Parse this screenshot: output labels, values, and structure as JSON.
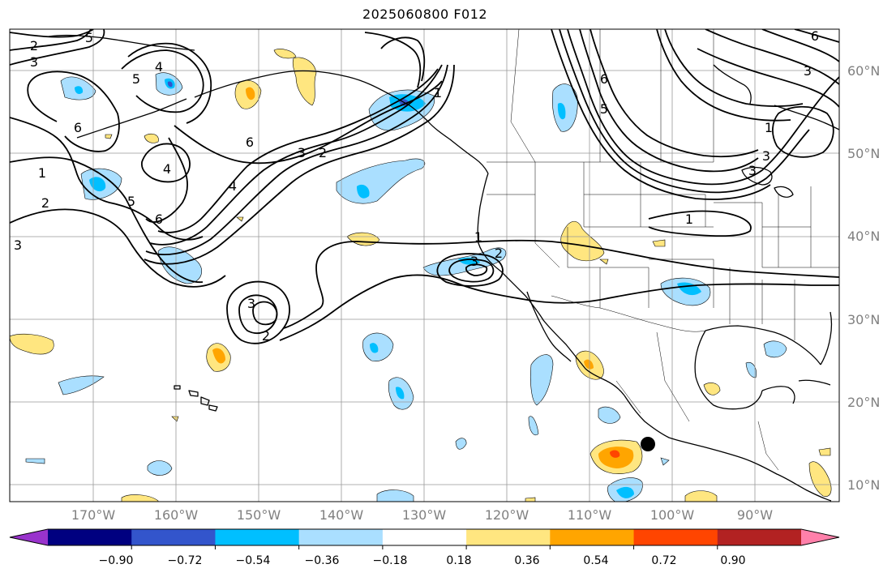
{
  "title": "2025060800 F012",
  "lat_labels": [
    "60°N",
    "50°N",
    "40°N",
    "30°N",
    "20°N",
    "10°N"
  ],
  "lon_labels": [
    "170°W",
    "160°W",
    "150°W",
    "140°W",
    "130°W",
    "120°W",
    "110°W",
    "100°W",
    "90°W"
  ],
  "contour_labels": [
    "2",
    "3",
    "5",
    "4",
    "1",
    "6",
    "6",
    "4",
    "5",
    "6",
    "1",
    "2",
    "3",
    "4",
    "3",
    "2",
    "6",
    "5",
    "3",
    "1",
    "3",
    "1",
    "3",
    "2",
    "3",
    "2",
    "1",
    "6",
    "5",
    "3"
  ],
  "colorbar": {
    "ticks": [
      "−0.90",
      "−0.72",
      "−0.54",
      "−0.36",
      "−0.18",
      "0.18",
      "0.36",
      "0.54",
      "0.72",
      "0.90"
    ],
    "colors": [
      "#9933cc",
      "#000080",
      "#3355cc",
      "#00bfff",
      "#aadfff",
      "#ffffff",
      "#ffe680",
      "#ffa500",
      "#ff4500",
      "#b22222",
      "#ff80aa"
    ]
  },
  "colors": {
    "contour": "#000000",
    "grid": "#999999",
    "coast": "#000000",
    "marker": "#000000"
  }
}
